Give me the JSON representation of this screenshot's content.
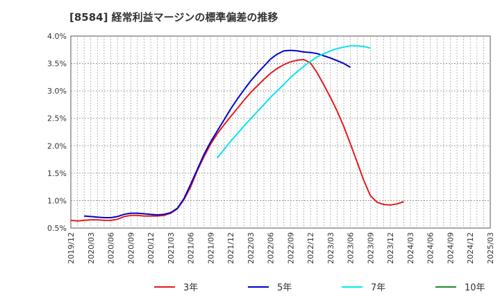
{
  "chart_data": {
    "type": "line",
    "title": "[8584]  経常利益マージンの標準偏差の推移",
    "xlabel": "",
    "ylabel": "",
    "ylim": [
      0.005,
      0.04
    ],
    "yticks": [
      0.005,
      0.01,
      0.015,
      0.02,
      0.025,
      0.03,
      0.035,
      0.04
    ],
    "ytick_labels": [
      "0.5%",
      "1.0%",
      "1.5%",
      "2.0%",
      "2.5%",
      "3.0%",
      "3.5%",
      "4.0%"
    ],
    "xtick_labels": [
      "2019/12",
      "2020/03",
      "2020/06",
      "2020/09",
      "2020/12",
      "2021/03",
      "2021/06",
      "2021/09",
      "2021/12",
      "2022/03",
      "2022/06",
      "2022/09",
      "2022/12",
      "2023/03",
      "2023/06",
      "2023/09",
      "2023/12",
      "2024/03",
      "2024/06",
      "2024/09",
      "2024/12",
      "2025/03"
    ],
    "grid": true,
    "legend": "bottom",
    "series": [
      {
        "name": "3年",
        "color": "#e31a1c",
        "start_index": 0,
        "values": [
          0.0064,
          0.0063,
          0.0064,
          0.0065,
          0.0065,
          0.0064,
          0.0064,
          0.0066,
          0.0071,
          0.0073,
          0.0073,
          0.0072,
          0.0072,
          0.0072,
          0.0073,
          0.0077,
          0.0085,
          0.0102,
          0.0125,
          0.0155,
          0.018,
          0.0203,
          0.0222,
          0.0238,
          0.0253,
          0.0268,
          0.0283,
          0.0297,
          0.0309,
          0.0321,
          0.0332,
          0.0341,
          0.0348,
          0.0353,
          0.0356,
          0.0357,
          0.0351,
          0.0333,
          0.0311,
          0.0288,
          0.0263,
          0.0235,
          0.0203,
          0.017,
          0.0137,
          0.0109,
          0.0097,
          0.0093,
          0.0092,
          0.0094,
          0.0098
        ]
      },
      {
        "name": "5年",
        "color": "#0000cc",
        "start_index": 2,
        "values": [
          0.0072,
          0.0071,
          0.007,
          0.0069,
          0.0069,
          0.0071,
          0.0075,
          0.0077,
          0.0077,
          0.0076,
          0.0075,
          0.0074,
          0.0075,
          0.0078,
          0.0086,
          0.0104,
          0.013,
          0.0157,
          0.0184,
          0.0207,
          0.0227,
          0.0247,
          0.0267,
          0.0285,
          0.0302,
          0.0318,
          0.0332,
          0.0345,
          0.0358,
          0.0367,
          0.0373,
          0.0374,
          0.0373,
          0.0371,
          0.037,
          0.0368,
          0.0364,
          0.036,
          0.0355,
          0.035,
          0.0343
        ]
      },
      {
        "name": "7年",
        "color": "#00e5ee",
        "start_index": 22,
        "values": [
          0.0178,
          0.0193,
          0.0208,
          0.0222,
          0.0236,
          0.0249,
          0.0262,
          0.0275,
          0.0288,
          0.03,
          0.0312,
          0.0324,
          0.0335,
          0.0345,
          0.0354,
          0.0362,
          0.0368,
          0.0373,
          0.0377,
          0.038,
          0.0382,
          0.0382,
          0.0381,
          0.0378
        ]
      },
      {
        "name": "10年",
        "color": "#228b22",
        "start_index": 0,
        "values": []
      }
    ]
  }
}
